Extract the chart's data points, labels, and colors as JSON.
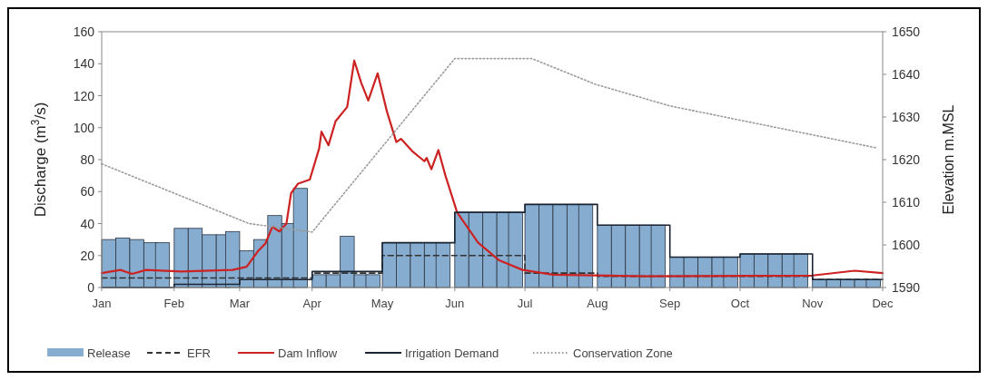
{
  "chart_data": {
    "type": "bar",
    "ylabel": "Discharge (m$^{3}$/s)",
    "y2label": "Elevation m.MSL",
    "xlim": [
      "--01-01",
      "--12-01"
    ],
    "xticks": [
      {
        "value": "--01-01",
        "label": "Jan"
      },
      {
        "value": "--02-01",
        "label": "Feb"
      },
      {
        "value": "--03-01",
        "label": "Mar"
      },
      {
        "value": "--04-01",
        "label": "Apr"
      },
      {
        "value": "--05-01",
        "label": "May"
      },
      {
        "value": "--06-01",
        "label": "Jun"
      },
      {
        "value": "--07-01",
        "label": "Jul"
      },
      {
        "value": "--08-01",
        "label": "Aug"
      },
      {
        "value": "--09-01",
        "label": "Sep"
      },
      {
        "value": "--10-01",
        "label": "Oct"
      },
      {
        "value": "--11-01",
        "label": "Nov"
      },
      {
        "value": "--12-01",
        "label": "Dec"
      }
    ],
    "ylim": [
      0,
      160
    ],
    "yticks": [
      0,
      20,
      40,
      60,
      80,
      100,
      120,
      140,
      160
    ],
    "y2lim": [
      1590,
      1650
    ],
    "y2ticks": [
      1590,
      1600,
      1610,
      1620,
      1630,
      1640,
      1650
    ],
    "legend": "bottom",
    "series": [
      {
        "name": "Release",
        "color": "#86acd0",
        "x": [
          "--01-04",
          "--01-10",
          "--01-16",
          "--01-22",
          "--01-27",
          "--02-04",
          "--02-10",
          "--02-16",
          "--02-22",
          "--02-26",
          "--03-04",
          "--03-10",
          "--03-16",
          "--03-22",
          "--03-27",
          "--04-04",
          "--04-10",
          "--04-16",
          "--04-22",
          "--04-27",
          "--05-04",
          "--05-10",
          "--05-16",
          "--05-22",
          "--05-27",
          "--06-04",
          "--06-10",
          "--06-16",
          "--06-22",
          "--06-27",
          "--07-04",
          "--07-10",
          "--07-16",
          "--07-22",
          "--07-27",
          "--08-04",
          "--08-10",
          "--08-16",
          "--08-22",
          "--08-27",
          "--09-04",
          "--09-10",
          "--09-16",
          "--09-22",
          "--09-27",
          "--10-04",
          "--10-10",
          "--10-16",
          "--10-22",
          "--10-27",
          "--11-04",
          "--11-10",
          "--11-16",
          "--11-22",
          "--11-27"
        ],
        "values": [
          30,
          31,
          30,
          28,
          28,
          37,
          37,
          33,
          33,
          35,
          23,
          30,
          45,
          40,
          62,
          8,
          8,
          32,
          8,
          8,
          28,
          28,
          28,
          28,
          28,
          47,
          47,
          47,
          47,
          47,
          52,
          52,
          52,
          52,
          52,
          39,
          39,
          39,
          39,
          39,
          19,
          19,
          19,
          19,
          19,
          21,
          21,
          21,
          21,
          21,
          5,
          5,
          5,
          5,
          5
        ]
      },
      {
        "name": "EFR",
        "type": "step",
        "color": "#333333",
        "line_style": "dashed",
        "x": [
          "--01-01",
          "--02-01",
          "--03-01",
          "--04-01",
          "--05-01",
          "--06-01",
          "--07-01",
          "--08-01",
          "--09-01",
          "--10-01",
          "--11-01",
          "--12-01"
        ],
        "values": [
          6,
          6,
          6,
          9,
          20,
          20,
          9,
          7,
          7,
          7,
          5,
          5
        ]
      },
      {
        "name": "Dam Inflow",
        "type": "line",
        "color": "#cc2222",
        "x": [
          "--01-01",
          "--01-09",
          "--01-14",
          "--01-20",
          "--02-04",
          "--02-26",
          "--03-04",
          "--03-09",
          "--03-12",
          "--03-15",
          "--03-18",
          "--03-21",
          "--03-23",
          "--03-26",
          "--03-31",
          "--04-04",
          "--04-05",
          "--04-08",
          "--04-11",
          "--04-16",
          "--04-19",
          "--04-22",
          "--04-25",
          "--04-29",
          "--05-03",
          "--05-07",
          "--05-09",
          "--05-14",
          "--05-19",
          "--05-20",
          "--05-22",
          "--05-25",
          "--05-28",
          "--06-02",
          "--06-11",
          "--06-20",
          "--06-30",
          "--07-13",
          "--08-22",
          "--11-01",
          "--11-19",
          "--12-01"
        ],
        "values": [
          9,
          11,
          8.5,
          11,
          10,
          11,
          13,
          23,
          27.5,
          38,
          35,
          40,
          59,
          65,
          67.5,
          87,
          97.5,
          89,
          104,
          113,
          142,
          128,
          117,
          134,
          110,
          91,
          93,
          85,
          79,
          81,
          74,
          86,
          70,
          47,
          28,
          17,
          11,
          8,
          7,
          7.5,
          10.5,
          9
        ]
      },
      {
        "name": "Irrigation Demand",
        "type": "step",
        "color": "#1a2433",
        "x": [
          "--01-01",
          "--02-01",
          "--03-01",
          "--04-01",
          "--05-01",
          "--06-01",
          "--07-01",
          "--08-01",
          "--09-01",
          "--10-01",
          "--11-01",
          "--12-01"
        ],
        "values": [
          0,
          2,
          5,
          10,
          28,
          47,
          52,
          39,
          19,
          21,
          5,
          5
        ]
      },
      {
        "name": "Conservation Zone",
        "type": "line",
        "axis": "y2",
        "color": "#9a9a9a",
        "line_style": "dotted",
        "x": [
          "--01-01",
          "--03-05",
          "--04-01",
          "--06-01",
          "--07-04",
          "--07-31",
          "--09-01",
          "--09-10",
          "--11-28"
        ],
        "values": [
          1619,
          1605,
          1603,
          1643.7,
          1643.7,
          1637.7,
          1632.6,
          1631.6,
          1622.8
        ]
      }
    ]
  }
}
